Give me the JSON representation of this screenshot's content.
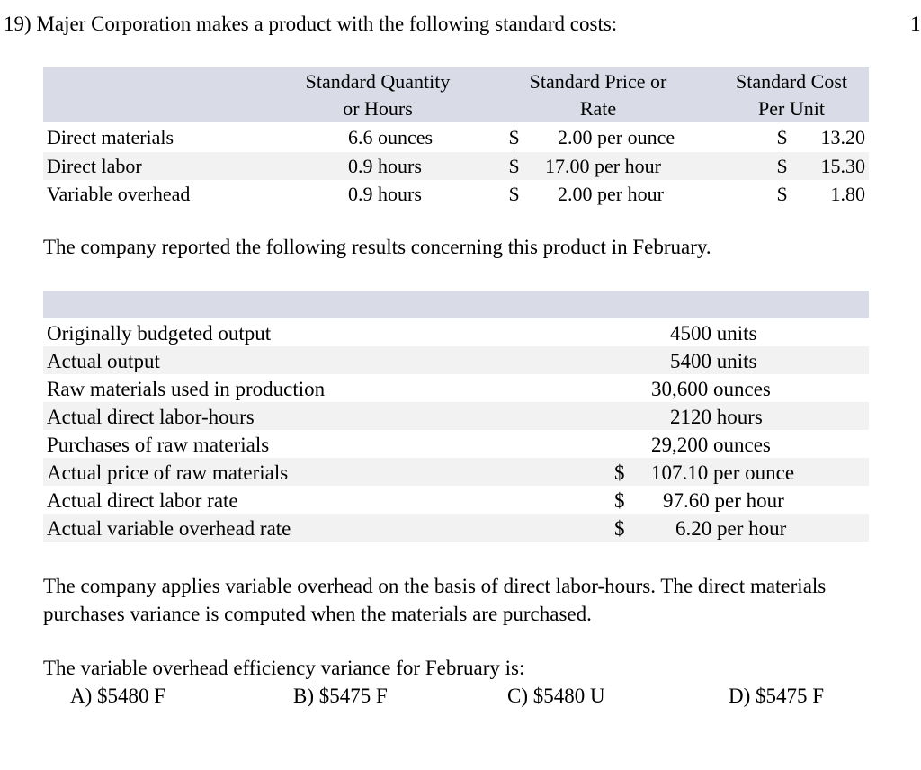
{
  "question": {
    "title": "19) Majer Corporation makes a product with the following standard costs:",
    "page_number": "1"
  },
  "standards_table": {
    "headers": {
      "qty_line1": "Standard Quantity",
      "qty_line2": "or Hours",
      "price_line1": "Standard Price or",
      "price_line2": "Rate",
      "cost_line1": "Standard Cost",
      "cost_line2": "Per Unit"
    },
    "rows": [
      {
        "label": "Direct materials",
        "qty": "6.6 ounces",
        "price_sym": "$",
        "price": "2.00 per ounce",
        "cost_sym": "$",
        "cost": "13.20"
      },
      {
        "label": "Direct labor",
        "qty": "0.9 hours",
        "price_sym": "$",
        "price": "17.00 per hour",
        "cost_sym": "$",
        "cost": "15.30"
      },
      {
        "label": "Variable overhead",
        "qty": "0.9 hours",
        "price_sym": "$",
        "price": "2.00 per hour",
        "cost_sym": "$",
        "cost": "1.80"
      }
    ]
  },
  "results_intro": "The company reported the following results concerning this product in February.",
  "results_table": {
    "rows": [
      {
        "label": "Originally budgeted output",
        "sym": "",
        "value": "4500 units"
      },
      {
        "label": "Actual output",
        "sym": "",
        "value": "5400 units"
      },
      {
        "label": "Raw materials used in production",
        "sym": "",
        "value": "30,600 ounces"
      },
      {
        "label": "Actual direct labor-hours",
        "sym": "",
        "value": "2120 hours"
      },
      {
        "label": "Purchases of raw materials",
        "sym": "",
        "value": "29,200 ounces"
      },
      {
        "label": "Actual price of raw materials",
        "sym": "$",
        "value": "107.10 per ounce"
      },
      {
        "label": "Actual direct labor rate",
        "sym": "$",
        "value": "97.60 per hour"
      },
      {
        "label": "Actual variable overhead rate",
        "sym": "$",
        "value": "6.20 per hour"
      }
    ]
  },
  "paragraph": "The company applies variable overhead on the basis of direct labor-hours. The direct materials purchases variance is computed when the materials are purchased.",
  "prompt": "The variable overhead efficiency variance for February is:",
  "choices": {
    "a": "A) $5480 F",
    "b": "B) $5475 F",
    "c": "C) $5480 U",
    "d": "D) $5475 F"
  }
}
